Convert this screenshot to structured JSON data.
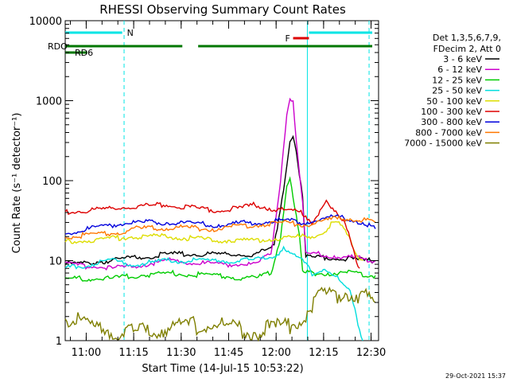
{
  "chart_data": {
    "type": "line",
    "title": "RHESSI Observing Summary Count Rates",
    "xlabel": "Start Time (14-Jul-15 10:53:22)",
    "ylabel": "Count Rate (s⁻¹ detector⁻¹)",
    "y_scale": "log",
    "ylim": [
      1,
      10000
    ],
    "xlim_minutes_from_start": [
      0,
      99
    ],
    "x_ticks": [
      "11:00",
      "11:15",
      "11:30",
      "11:45",
      "12:00",
      "12:15",
      "12:30"
    ],
    "y_ticks": [
      "1",
      "10",
      "100",
      "1000",
      "10000"
    ],
    "legend_header": [
      "Det 1,3,5,6,7,9,",
      "FDecim 2, Att 0"
    ],
    "timestamp": "29-Oct-2021 15:37",
    "series": [
      {
        "name": "3 - 6 keV",
        "color": "#000000",
        "points": [
          [
            0,
            9
          ],
          [
            15,
            10
          ],
          [
            22,
            11
          ],
          [
            33,
            12
          ],
          [
            47,
            12
          ],
          [
            60,
            12
          ],
          [
            66,
            15
          ],
          [
            69,
            80
          ],
          [
            71,
            320
          ],
          [
            72,
            380
          ],
          [
            73,
            250
          ],
          [
            75,
            60
          ],
          [
            76,
            11
          ],
          [
            80,
            11
          ],
          [
            85,
            11
          ],
          [
            95,
            10
          ],
          [
            98,
            10
          ]
        ]
      },
      {
        "name": "6 - 12 keV",
        "color": "#cc00cc",
        "points": [
          [
            0,
            9
          ],
          [
            15,
            8
          ],
          [
            25,
            9
          ],
          [
            33,
            10
          ],
          [
            47,
            9
          ],
          [
            60,
            9
          ],
          [
            65,
            12
          ],
          [
            68,
            100
          ],
          [
            70,
            700
          ],
          [
            71,
            1100
          ],
          [
            72,
            1000
          ],
          [
            73,
            300
          ],
          [
            75,
            50
          ],
          [
            76,
            12
          ],
          [
            80,
            12
          ],
          [
            90,
            11
          ],
          [
            98,
            10
          ]
        ]
      },
      {
        "name": "12 - 25 keV",
        "color": "#00cc00",
        "points": [
          [
            0,
            6
          ],
          [
            15,
            6
          ],
          [
            22,
            6.5
          ],
          [
            33,
            7
          ],
          [
            47,
            6.5
          ],
          [
            60,
            6
          ],
          [
            65,
            7
          ],
          [
            68,
            20
          ],
          [
            70,
            90
          ],
          [
            71,
            110
          ],
          [
            72,
            60
          ],
          [
            74,
            20
          ],
          [
            75,
            7
          ],
          [
            85,
            7
          ],
          [
            90,
            7
          ],
          [
            98,
            6.5
          ]
        ]
      },
      {
        "name": "25 - 50 keV",
        "color": "#00dddd",
        "points": [
          [
            0,
            8
          ],
          [
            15,
            10
          ],
          [
            22,
            9
          ],
          [
            33,
            10
          ],
          [
            47,
            10
          ],
          [
            60,
            10
          ],
          [
            67,
            12
          ],
          [
            69,
            15
          ],
          [
            70,
            13
          ],
          [
            75,
            10
          ],
          [
            78,
            7
          ],
          [
            82,
            8
          ],
          [
            86,
            6
          ],
          [
            90,
            4
          ],
          [
            92,
            2
          ],
          [
            94,
            1
          ]
        ]
      },
      {
        "name": "50 - 100 keV",
        "color": "#dddd00",
        "points": [
          [
            0,
            17
          ],
          [
            15,
            19
          ],
          [
            22,
            20
          ],
          [
            33,
            20
          ],
          [
            47,
            18
          ],
          [
            60,
            18
          ],
          [
            68,
            19
          ],
          [
            75,
            20
          ],
          [
            78,
            20
          ],
          [
            81,
            22
          ],
          [
            84,
            28
          ],
          [
            86,
            30
          ],
          [
            88,
            25
          ],
          [
            90,
            18
          ],
          [
            92,
            12
          ],
          [
            94,
            10
          ]
        ]
      },
      {
        "name": "100 - 300 keV",
        "color": "#dd0000",
        "points": [
          [
            0,
            40
          ],
          [
            15,
            45
          ],
          [
            22,
            48
          ],
          [
            33,
            50
          ],
          [
            42,
            45
          ],
          [
            47,
            43
          ],
          [
            55,
            45
          ],
          [
            60,
            50
          ],
          [
            65,
            45
          ],
          [
            70,
            42
          ],
          [
            75,
            40
          ],
          [
            78,
            30
          ],
          [
            80,
            40
          ],
          [
            82,
            55
          ],
          [
            84,
            45
          ],
          [
            88,
            30
          ],
          [
            90,
            20
          ],
          [
            92,
            10
          ],
          [
            93,
            8
          ]
        ]
      },
      {
        "name": "300 - 800 keV",
        "color": "#0000dd",
        "points": [
          [
            0,
            22
          ],
          [
            15,
            28
          ],
          [
            22,
            30
          ],
          [
            33,
            30
          ],
          [
            47,
            28
          ],
          [
            60,
            30
          ],
          [
            70,
            32
          ],
          [
            75,
            30
          ],
          [
            80,
            32
          ],
          [
            85,
            35
          ],
          [
            90,
            33
          ],
          [
            94,
            30
          ],
          [
            98,
            25
          ]
        ]
      },
      {
        "name": "800 - 7000 keV",
        "color": "#ff7700",
        "points": [
          [
            0,
            20
          ],
          [
            15,
            22
          ],
          [
            22,
            25
          ],
          [
            33,
            26
          ],
          [
            47,
            25
          ],
          [
            60,
            28
          ],
          [
            70,
            30
          ],
          [
            75,
            28
          ],
          [
            80,
            30
          ],
          [
            85,
            33
          ],
          [
            90,
            34
          ],
          [
            94,
            32
          ],
          [
            98,
            30
          ]
        ]
      },
      {
        "name": "7000 - 15000 keV",
        "color": "#7f7f00",
        "points": [
          [
            0,
            2
          ],
          [
            8,
            1.5
          ],
          [
            22,
            1.2
          ],
          [
            33,
            1.5
          ],
          [
            47,
            1.6
          ],
          [
            60,
            1.3
          ],
          [
            70,
            1.5
          ],
          [
            75,
            2
          ],
          [
            80,
            3.5
          ],
          [
            85,
            3.8
          ],
          [
            90,
            4
          ],
          [
            95,
            3.5
          ],
          [
            98,
            3
          ]
        ]
      }
    ],
    "state_bars": [
      {
        "label": "N",
        "color": "#00e5e5",
        "segments": [
          [
            0,
            18
          ],
          [
            77,
            97
          ]
        ]
      },
      {
        "label": "F",
        "color": "#dd0000",
        "segments": [
          [
            72,
            77
          ]
        ]
      },
      {
        "label": "RDO",
        "color": "#007700",
        "segments": [
          [
            0,
            37
          ],
          [
            42,
            77
          ],
          [
            77,
            97
          ]
        ]
      },
      {
        "label": "RD6",
        "color": "#007700",
        "segments": [
          [
            0,
            7
          ]
        ]
      }
    ],
    "dashed_markers_minutes": [
      18.6,
      96
    ],
    "solid_markers_minutes": [
      76.5
    ]
  }
}
